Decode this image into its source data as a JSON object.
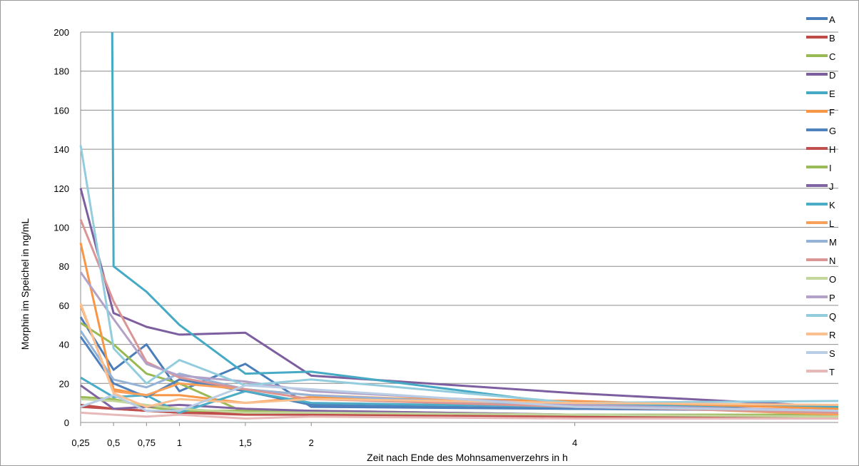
{
  "chart_data": {
    "type": "line",
    "title": "",
    "xlabel": "Zeit nach Ende des Mohnsamenverzehrs in h",
    "ylabel": "Morphin im Speichel in ng/mL",
    "ylim": [
      0,
      200
    ],
    "yticks": [
      0,
      20,
      40,
      60,
      80,
      100,
      120,
      140,
      160,
      180,
      200
    ],
    "x": [
      0.25,
      0.5,
      0.75,
      1,
      1.5,
      2,
      4,
      6
    ],
    "xticks": [
      {
        "value": 0.25,
        "label": "0,25"
      },
      {
        "value": 0.5,
        "label": "0,5"
      },
      {
        "value": 0.75,
        "label": "0,75"
      },
      {
        "value": 1,
        "label": "1"
      },
      {
        "value": 1.5,
        "label": "1,5"
      },
      {
        "value": 2,
        "label": "2"
      },
      {
        "value": 4,
        "label": "4"
      }
    ],
    "grid": true,
    "legend_position": "right",
    "series": [
      {
        "name": "A",
        "color": "#4a7ebb",
        "values": [
          54,
          27,
          40,
          16,
          30,
          8,
          7,
          9
        ]
      },
      {
        "name": "B",
        "color": "#be4b48",
        "values": [
          9,
          7,
          6,
          5,
          5,
          5,
          3,
          3
        ]
      },
      {
        "name": "C",
        "color": "#98b954",
        "values": [
          51,
          40,
          25,
          20,
          5,
          5,
          4,
          3
        ]
      },
      {
        "name": "D",
        "color": "#7d5fa0",
        "values": [
          120,
          56,
          49,
          45,
          46,
          24,
          15,
          8
        ]
      },
      {
        "name": "E",
        "color": "#46aac5",
        "values": [
          null,
          80,
          67,
          50,
          25,
          26,
          9,
          8
        ]
      },
      {
        "name": "F",
        "color": "#f79646",
        "values": [
          92,
          17,
          14,
          14,
          10,
          13,
          11,
          7
        ]
      },
      {
        "name": "G",
        "color": "#4f81bd",
        "values": [
          44,
          20,
          13,
          22,
          16,
          9,
          7,
          6
        ]
      },
      {
        "name": "H",
        "color": "#c0504d",
        "values": [
          8,
          7,
          6,
          5,
          4,
          4,
          3,
          3
        ]
      },
      {
        "name": "I",
        "color": "#9bbb59",
        "values": [
          13,
          12,
          8,
          6,
          6,
          6,
          4,
          4
        ]
      },
      {
        "name": "J",
        "color": "#8064a2",
        "values": [
          19,
          7,
          8,
          9,
          7,
          6,
          4,
          3
        ]
      },
      {
        "name": "K",
        "color": "#4bacc6",
        "values": [
          23,
          13,
          14,
          5,
          16,
          10,
          8,
          6
        ]
      },
      {
        "name": "L",
        "color": "#f9a05a",
        "values": [
          60,
          16,
          14,
          20,
          17,
          14,
          9,
          4
        ]
      },
      {
        "name": "M",
        "color": "#95b3d7",
        "values": [
          47,
          22,
          18,
          25,
          17,
          14,
          8,
          5
        ]
      },
      {
        "name": "N",
        "color": "#d99694",
        "values": [
          104,
          62,
          31,
          23,
          17,
          12,
          8,
          5
        ]
      },
      {
        "name": "O",
        "color": "#c3d69b",
        "values": [
          12,
          11,
          9,
          7,
          5,
          5,
          4,
          3
        ]
      },
      {
        "name": "P",
        "color": "#b3a2c7",
        "values": [
          77,
          53,
          30,
          24,
          21,
          16,
          9,
          6
        ]
      },
      {
        "name": "Q",
        "color": "#93cddd",
        "values": [
          142,
          38,
          20,
          32,
          19,
          22,
          10,
          11
        ]
      },
      {
        "name": "R",
        "color": "#fac090",
        "values": [
          61,
          15,
          8,
          12,
          10,
          12,
          10,
          9
        ]
      },
      {
        "name": "S",
        "color": "#b9cde5",
        "values": [
          8,
          14,
          6,
          6,
          19,
          17,
          8,
          6
        ]
      },
      {
        "name": "T",
        "color": "#e6b9b8",
        "values": [
          5,
          4,
          3,
          4,
          2,
          3,
          2,
          2
        ]
      }
    ],
    "clipped_segment": {
      "series": "E",
      "from_x": 0.5,
      "from_value": 80
    }
  }
}
